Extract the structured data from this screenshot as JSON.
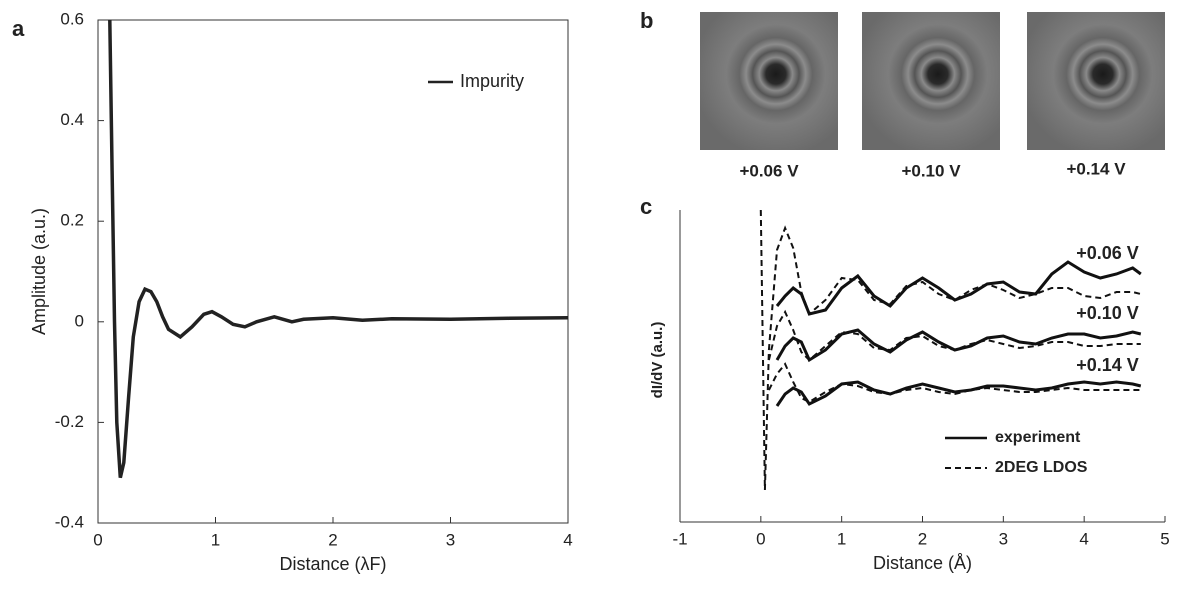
{
  "chart_data": [
    {
      "type": "line",
      "panel_label": "a",
      "x_label": "Distance (λF)",
      "y_label": "Amplitude (a.u.)",
      "xlim": [
        0,
        4
      ],
      "ylim": [
        -0.4,
        0.6
      ],
      "xticks": [
        0,
        1,
        2,
        3,
        4
      ],
      "yticks": [
        -0.4,
        -0.2,
        0,
        0.2,
        0.4,
        0.6
      ],
      "legend": "upper right",
      "x": [
        0.1,
        0.12,
        0.14,
        0.16,
        0.19,
        0.22,
        0.26,
        0.3,
        0.35,
        0.4,
        0.45,
        0.5,
        0.55,
        0.6,
        0.7,
        0.8,
        0.9,
        0.97,
        1.05,
        1.15,
        1.25,
        1.35,
        1.5,
        1.65,
        1.75,
        2.0,
        2.25,
        2.5,
        3,
        3.5,
        4
      ],
      "series": [
        {
          "name": "Impurity",
          "color": "#222222",
          "values": [
            0.6,
            0.3,
            0.0,
            -0.2,
            -0.31,
            -0.28,
            -0.15,
            -0.03,
            0.04,
            0.065,
            0.06,
            0.04,
            0.01,
            -0.015,
            -0.03,
            -0.01,
            0.015,
            0.02,
            0.01,
            -0.005,
            -0.01,
            0.0,
            0.01,
            0.0,
            0.005,
            0.008,
            0.003,
            0.006,
            0.005,
            0.007,
            0.008
          ]
        }
      ]
    },
    {
      "type": "line",
      "panel_label": "c",
      "x_label": "Distance (Å)",
      "y_label": "dI/dV  (a.u.)",
      "xlim": [
        -1,
        5
      ],
      "ylim": [
        0,
        300
      ],
      "xticks": [
        -1,
        0,
        1,
        2,
        3,
        4,
        5
      ],
      "legend": "lower right",
      "legend_entries": [
        "experiment",
        "2DEG LDOS"
      ],
      "x": [
        0.0,
        0.05,
        0.1,
        0.2,
        0.3,
        0.4,
        0.5,
        0.6,
        0.8,
        1.0,
        1.2,
        1.4,
        1.6,
        1.8,
        2.0,
        2.2,
        2.4,
        2.6,
        2.8,
        3.0,
        3.2,
        3.4,
        3.6,
        3.8,
        4.0,
        4.2,
        4.4,
        4.6,
        4.7
      ],
      "series": [
        {
          "name": "+0.06 V",
          "experiment": [
            null,
            null,
            null,
            204,
            214,
            222,
            216,
            196,
            200,
            222,
            234,
            214,
            204,
            222,
            232,
            222,
            210,
            216,
            226,
            228,
            218,
            216,
            236,
            248,
            238,
            232,
            236,
            242,
            236
          ],
          "ldos": [
            300,
            20,
            160,
            260,
            282,
            262,
            218,
            196,
            210,
            232,
            230,
            210,
            206,
            224,
            228,
            216,
            210,
            220,
            226,
            220,
            212,
            216,
            222,
            222,
            214,
            212,
            218,
            218,
            216
          ]
        },
        {
          "name": "+0.10 V",
          "experiment": [
            null,
            null,
            null,
            150,
            164,
            172,
            168,
            150,
            160,
            176,
            180,
            166,
            158,
            170,
            178,
            168,
            160,
            164,
            172,
            174,
            168,
            166,
            172,
            176,
            176,
            172,
            174,
            178,
            176
          ],
          "ldos": [
            null,
            null,
            150,
            184,
            198,
            180,
            158,
            150,
            164,
            178,
            176,
            162,
            160,
            172,
            174,
            164,
            160,
            166,
            170,
            166,
            162,
            164,
            168,
            168,
            164,
            164,
            166,
            166,
            166
          ]
        },
        {
          "name": "+0.14 V",
          "experiment": [
            null,
            null,
            null,
            104,
            116,
            122,
            118,
            106,
            114,
            126,
            128,
            120,
            116,
            122,
            126,
            122,
            118,
            120,
            124,
            124,
            122,
            120,
            122,
            126,
            128,
            126,
            128,
            126,
            124
          ],
          "ldos": [
            null,
            null,
            120,
            136,
            146,
            128,
            112,
            108,
            118,
            126,
            124,
            118,
            116,
            120,
            122,
            118,
            116,
            120,
            122,
            120,
            118,
            118,
            120,
            122,
            120,
            120,
            120,
            120,
            120
          ]
        }
      ]
    }
  ],
  "images": {
    "panel_label": "b",
    "labels": [
      "+0.06 V",
      "+0.10 V",
      "+0.14 V"
    ]
  }
}
